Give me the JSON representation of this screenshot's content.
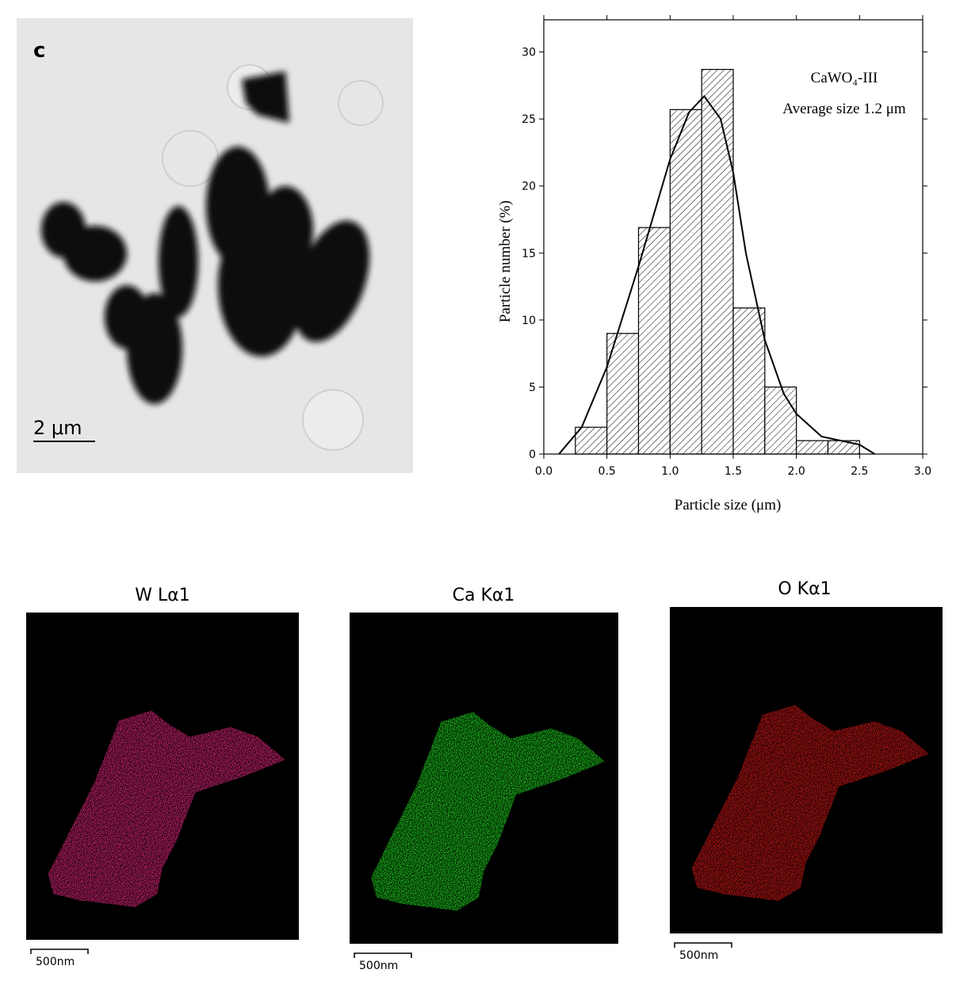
{
  "chart_data": {
    "type": "histogram",
    "bins": [
      0.25,
      0.5,
      0.75,
      1.0,
      1.25,
      1.5,
      1.75,
      2.0,
      2.25,
      2.5
    ],
    "values": [
      2,
      9,
      16.9,
      25.7,
      28.7,
      10.9,
      5,
      1,
      1
    ],
    "color": "#000000",
    "fit": {
      "x": [
        0.12,
        0.3,
        0.5,
        0.75,
        1.0,
        1.15,
        1.27,
        1.4,
        1.5,
        1.6,
        1.75,
        1.9,
        2.0,
        2.2,
        2.4,
        2.5,
        2.62
      ],
      "values": [
        0,
        2,
        6.5,
        14,
        22,
        25.5,
        26.7,
        25,
        21,
        15,
        8.5,
        4.5,
        3,
        1.3,
        0.9,
        0.7,
        0
      ],
      "color": "#000000"
    },
    "xlabel": "Particle size (μm)",
    "ylabel": "Particle number (%)",
    "annotations": [
      "CaWO₄-III",
      "Average size 1.2 μm"
    ],
    "xlim": [
      0,
      3
    ],
    "ylim": [
      0,
      32.4
    ],
    "xticks": [
      {
        "value": 0,
        "label": "0.0"
      },
      {
        "value": 0.5,
        "label": "0.5"
      },
      {
        "value": 1,
        "label": "1.0"
      },
      {
        "value": 1.5,
        "label": "1.5"
      },
      {
        "value": 2,
        "label": "2.0"
      },
      {
        "value": 2.5,
        "label": "2.5"
      },
      {
        "value": 3,
        "label": "3.0"
      }
    ],
    "yticks": [
      0,
      5,
      10,
      15,
      20,
      25,
      30
    ]
  },
  "tem": {
    "panel_label": "c",
    "scale_bar": "2 μm"
  },
  "maps": [
    {
      "title": "W Lα1",
      "scale_bar": "500nm",
      "color": "#ff2a8a"
    },
    {
      "title": "Ca Kα1",
      "scale_bar": "500nm",
      "color": "#22ee22"
    },
    {
      "title": "O Kα1",
      "scale_bar": "500nm",
      "color": "#ee1a1a"
    }
  ]
}
